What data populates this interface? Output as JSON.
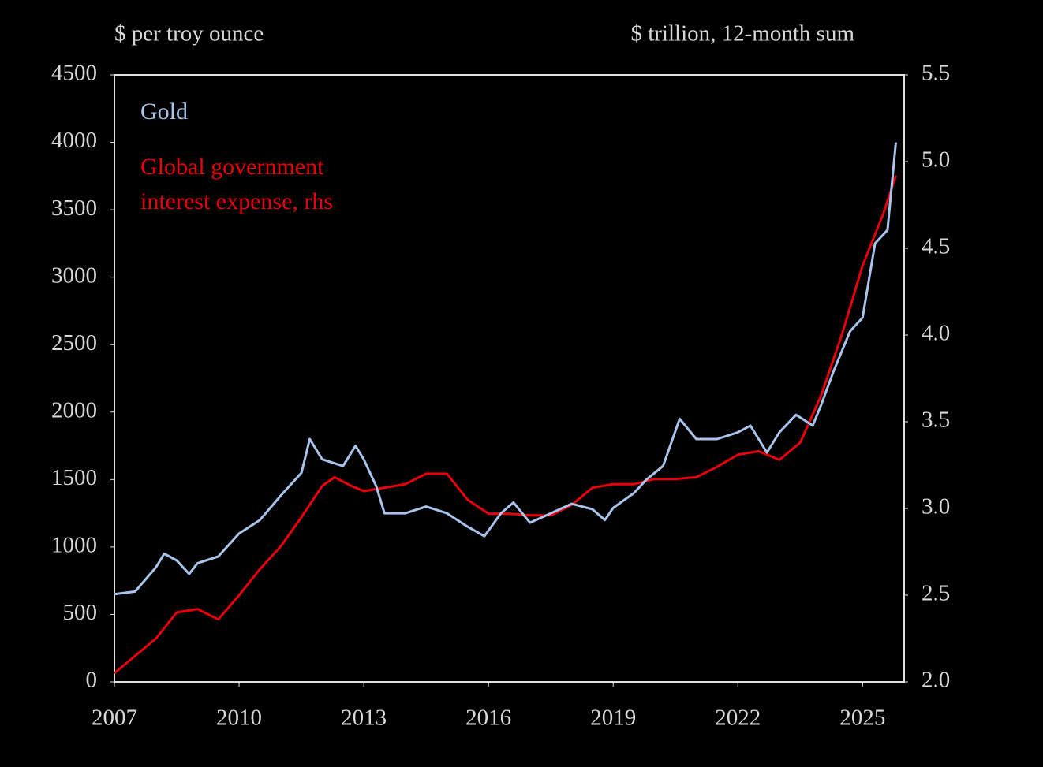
{
  "chart_data": {
    "type": "line",
    "y_axis_label": "$ per troy ounce",
    "y2_axis_label": "$ trillion,  12-month sum",
    "xlim": [
      2007,
      2026
    ],
    "xticks": [
      2007,
      2010,
      2013,
      2016,
      2019,
      2022,
      2025
    ],
    "ylim": [
      0,
      4500
    ],
    "yticks": [
      0,
      500,
      1000,
      1500,
      2000,
      2500,
      3000,
      3500,
      4000,
      4500
    ],
    "y2lim": [
      2,
      5.5
    ],
    "y2ticks": [
      {
        "value": 2,
        "label": "2.0"
      },
      2.5,
      {
        "value": 3,
        "label": "3.0"
      },
      3.5,
      {
        "value": 4,
        "label": "4.0"
      },
      4.5,
      {
        "value": 5,
        "label": "5.0"
      },
      5.5
    ],
    "grid": false,
    "legend": "top-left",
    "series": [
      {
        "name": "Gold",
        "color": "#a9c4ec",
        "x": [
          2007.0,
          2007.5,
          2008.0,
          2008.2,
          2008.5,
          2008.8,
          2009.0,
          2009.5,
          2010.0,
          2010.5,
          2011.0,
          2011.5,
          2011.7,
          2012.0,
          2012.5,
          2012.8,
          2013.0,
          2013.3,
          2013.5,
          2014.0,
          2014.5,
          2015.0,
          2015.5,
          2015.9,
          2016.3,
          2016.6,
          2017.0,
          2017.5,
          2018.0,
          2018.5,
          2018.8,
          2019.0,
          2019.5,
          2019.8,
          2020.2,
          2020.6,
          2021.0,
          2021.5,
          2022.0,
          2022.3,
          2022.7,
          2023.0,
          2023.4,
          2023.8,
          2024.0,
          2024.3,
          2024.7,
          2025.0,
          2025.3,
          2025.6,
          2025.8
        ],
        "values": [
          650,
          670,
          850,
          950,
          900,
          800,
          880,
          930,
          1100,
          1200,
          1380,
          1550,
          1800,
          1650,
          1600,
          1750,
          1650,
          1450,
          1250,
          1250,
          1300,
          1250,
          1150,
          1080,
          1250,
          1330,
          1180,
          1250,
          1320,
          1280,
          1200,
          1290,
          1400,
          1500,
          1600,
          1950,
          1800,
          1800,
          1850,
          1900,
          1700,
          1850,
          1980,
          1900,
          2050,
          2300,
          2600,
          2700,
          3250,
          3350,
          4000
        ]
      },
      {
        "name": "Global government interest expense, rhs",
        "color": "#e8000b",
        "axis": "y2",
        "x": [
          2007.0,
          2007.5,
          2008.0,
          2008.5,
          2009.0,
          2009.5,
          2010.0,
          2010.5,
          2011.0,
          2011.5,
          2012.0,
          2012.3,
          2012.7,
          2013.0,
          2013.5,
          2014.0,
          2014.5,
          2015.0,
          2015.5,
          2016.0,
          2016.5,
          2017.0,
          2017.5,
          2018.0,
          2018.5,
          2019.0,
          2019.5,
          2020.0,
          2020.5,
          2021.0,
          2021.5,
          2022.0,
          2022.5,
          2023.0,
          2023.5,
          2024.0,
          2024.5,
          2025.0,
          2025.5,
          2025.8
        ],
        "values": [
          2.05,
          2.15,
          2.25,
          2.4,
          2.42,
          2.36,
          2.5,
          2.65,
          2.78,
          2.95,
          3.13,
          3.18,
          3.13,
          3.1,
          3.12,
          3.14,
          3.2,
          3.2,
          3.05,
          2.97,
          2.97,
          2.96,
          2.96,
          3.02,
          3.12,
          3.14,
          3.14,
          3.17,
          3.17,
          3.18,
          3.24,
          3.31,
          3.33,
          3.28,
          3.38,
          3.65,
          4.0,
          4.4,
          4.7,
          4.92
        ]
      }
    ]
  }
}
